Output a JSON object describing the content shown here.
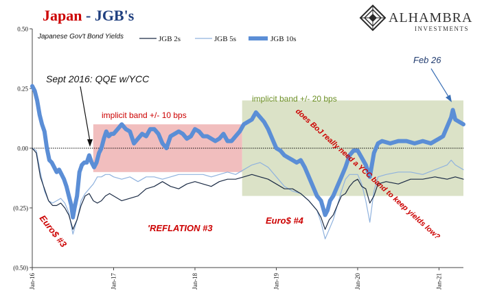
{
  "header": {
    "title_part1": "Japan",
    "title_sep": " - ",
    "title_part2": "JGB's",
    "logo_name": "ALHAMBRA",
    "logo_sub": "INVESTMENTS"
  },
  "colors": {
    "title_red": "#cc0000",
    "title_blue": "#1f3f7f",
    "jgb2": "#1a2a44",
    "jgb5": "#8fb2de",
    "jgb10": "#5b8ed6",
    "jgb10_dark": "#4a5ea8",
    "pink_band": "#efb3b3",
    "green_band": "#cfd8b4",
    "annotation_red": "#cc0000",
    "annotation_green": "#6b8e23",
    "annotation_black": "#111111",
    "annotation_navy": "#1f3a6e"
  },
  "chart_data": {
    "type": "line",
    "title": "Japan - JGB's",
    "subtitle": "Japanese Gov't Bond Yields",
    "xlabel": "",
    "ylabel": "",
    "x_ticks": [
      "Jan-16",
      "Jan-17",
      "Jan-18",
      "Jan-19",
      "Jan-20",
      "Jan-21"
    ],
    "x_range": [
      2016.0,
      2021.3
    ],
    "y_ticks": [
      "0.50",
      "0.25",
      "0.00",
      "(0.25)",
      "(0.50)"
    ],
    "y_tick_values": [
      0.5,
      0.25,
      0.0,
      -0.25,
      -0.5
    ],
    "ylim": [
      -0.5,
      0.5
    ],
    "legend_position": "top-center",
    "legend": [
      "JGB 2s",
      "JGB 5s",
      "JGB 10s"
    ],
    "series": [
      {
        "name": "JGB 2s",
        "points": [
          [
            2016.0,
            0.0
          ],
          [
            2016.05,
            -0.02
          ],
          [
            2016.1,
            -0.12
          ],
          [
            2016.15,
            -0.17
          ],
          [
            2016.2,
            -0.22
          ],
          [
            2016.25,
            -0.24
          ],
          [
            2016.3,
            -0.24
          ],
          [
            2016.35,
            -0.23
          ],
          [
            2016.4,
            -0.25
          ],
          [
            2016.45,
            -0.28
          ],
          [
            2016.5,
            -0.34
          ],
          [
            2016.55,
            -0.3
          ],
          [
            2016.6,
            -0.24
          ],
          [
            2016.65,
            -0.2
          ],
          [
            2016.7,
            -0.19
          ],
          [
            2016.75,
            -0.22
          ],
          [
            2016.8,
            -0.23
          ],
          [
            2016.85,
            -0.22
          ],
          [
            2016.9,
            -0.2
          ],
          [
            2016.95,
            -0.19
          ],
          [
            2017.0,
            -0.2
          ],
          [
            2017.1,
            -0.22
          ],
          [
            2017.2,
            -0.21
          ],
          [
            2017.3,
            -0.2
          ],
          [
            2017.4,
            -0.17
          ],
          [
            2017.5,
            -0.16
          ],
          [
            2017.6,
            -0.14
          ],
          [
            2017.7,
            -0.16
          ],
          [
            2017.8,
            -0.17
          ],
          [
            2017.9,
            -0.15
          ],
          [
            2018.0,
            -0.14
          ],
          [
            2018.1,
            -0.15
          ],
          [
            2018.2,
            -0.16
          ],
          [
            2018.3,
            -0.14
          ],
          [
            2018.4,
            -0.13
          ],
          [
            2018.5,
            -0.13
          ],
          [
            2018.6,
            -0.12
          ],
          [
            2018.7,
            -0.11
          ],
          [
            2018.8,
            -0.12
          ],
          [
            2018.9,
            -0.13
          ],
          [
            2019.0,
            -0.15
          ],
          [
            2019.1,
            -0.17
          ],
          [
            2019.2,
            -0.17
          ],
          [
            2019.3,
            -0.19
          ],
          [
            2019.4,
            -0.22
          ],
          [
            2019.5,
            -0.26
          ],
          [
            2019.55,
            -0.29
          ],
          [
            2019.6,
            -0.34
          ],
          [
            2019.65,
            -0.3
          ],
          [
            2019.7,
            -0.28
          ],
          [
            2019.75,
            -0.24
          ],
          [
            2019.8,
            -0.2
          ],
          [
            2019.85,
            -0.19
          ],
          [
            2019.9,
            -0.16
          ],
          [
            2019.95,
            -0.14
          ],
          [
            2020.0,
            -0.13
          ],
          [
            2020.05,
            -0.16
          ],
          [
            2020.1,
            -0.17
          ],
          [
            2020.15,
            -0.23
          ],
          [
            2020.2,
            -0.2
          ],
          [
            2020.25,
            -0.15
          ],
          [
            2020.35,
            -0.14
          ],
          [
            2020.5,
            -0.15
          ],
          [
            2020.65,
            -0.13
          ],
          [
            2020.8,
            -0.13
          ],
          [
            2020.95,
            -0.12
          ],
          [
            2021.1,
            -0.13
          ],
          [
            2021.2,
            -0.12
          ],
          [
            2021.3,
            -0.13
          ]
        ]
      },
      {
        "name": "JGB 5s",
        "points": [
          [
            2016.0,
            0.0
          ],
          [
            2016.05,
            -0.01
          ],
          [
            2016.1,
            -0.1
          ],
          [
            2016.15,
            -0.18
          ],
          [
            2016.2,
            -0.22
          ],
          [
            2016.25,
            -0.23
          ],
          [
            2016.3,
            -0.22
          ],
          [
            2016.35,
            -0.21
          ],
          [
            2016.4,
            -0.23
          ],
          [
            2016.45,
            -0.27
          ],
          [
            2016.5,
            -0.36
          ],
          [
            2016.55,
            -0.3
          ],
          [
            2016.6,
            -0.22
          ],
          [
            2016.65,
            -0.19
          ],
          [
            2016.7,
            -0.17
          ],
          [
            2016.75,
            -0.15
          ],
          [
            2016.8,
            -0.12
          ],
          [
            2016.85,
            -0.12
          ],
          [
            2016.9,
            -0.11
          ],
          [
            2016.95,
            -0.11
          ],
          [
            2017.0,
            -0.12
          ],
          [
            2017.1,
            -0.13
          ],
          [
            2017.2,
            -0.12
          ],
          [
            2017.3,
            -0.14
          ],
          [
            2017.4,
            -0.12
          ],
          [
            2017.5,
            -0.12
          ],
          [
            2017.6,
            -0.13
          ],
          [
            2017.7,
            -0.12
          ],
          [
            2017.8,
            -0.11
          ],
          [
            2017.9,
            -0.11
          ],
          [
            2018.0,
            -0.11
          ],
          [
            2018.1,
            -0.11
          ],
          [
            2018.2,
            -0.12
          ],
          [
            2018.3,
            -0.11
          ],
          [
            2018.4,
            -0.1
          ],
          [
            2018.5,
            -0.11
          ],
          [
            2018.6,
            -0.09
          ],
          [
            2018.7,
            -0.07
          ],
          [
            2018.8,
            -0.06
          ],
          [
            2018.9,
            -0.08
          ],
          [
            2019.0,
            -0.12
          ],
          [
            2019.1,
            -0.16
          ],
          [
            2019.2,
            -0.18
          ],
          [
            2019.3,
            -0.19
          ],
          [
            2019.4,
            -0.22
          ],
          [
            2019.5,
            -0.26
          ],
          [
            2019.55,
            -0.31
          ],
          [
            2019.6,
            -0.38
          ],
          [
            2019.65,
            -0.34
          ],
          [
            2019.7,
            -0.3
          ],
          [
            2019.75,
            -0.24
          ],
          [
            2019.8,
            -0.18
          ],
          [
            2019.85,
            -0.13
          ],
          [
            2019.9,
            -0.11
          ],
          [
            2019.95,
            -0.11
          ],
          [
            2020.0,
            -0.11
          ],
          [
            2020.05,
            -0.15
          ],
          [
            2020.1,
            -0.22
          ],
          [
            2020.15,
            -0.31
          ],
          [
            2020.2,
            -0.18
          ],
          [
            2020.25,
            -0.12
          ],
          [
            2020.35,
            -0.11
          ],
          [
            2020.5,
            -0.1
          ],
          [
            2020.65,
            -0.1
          ],
          [
            2020.8,
            -0.11
          ],
          [
            2020.95,
            -0.09
          ],
          [
            2021.1,
            -0.07
          ],
          [
            2021.15,
            -0.05
          ],
          [
            2021.2,
            -0.07
          ],
          [
            2021.3,
            -0.09
          ]
        ]
      },
      {
        "name": "JGB 10s",
        "points": [
          [
            2016.0,
            0.26
          ],
          [
            2016.03,
            0.24
          ],
          [
            2016.06,
            0.2
          ],
          [
            2016.09,
            0.14
          ],
          [
            2016.12,
            0.1
          ],
          [
            2016.15,
            0.07
          ],
          [
            2016.18,
            0.0
          ],
          [
            2016.21,
            -0.05
          ],
          [
            2016.24,
            -0.06
          ],
          [
            2016.27,
            -0.08
          ],
          [
            2016.3,
            -0.1
          ],
          [
            2016.33,
            -0.09
          ],
          [
            2016.36,
            -0.11
          ],
          [
            2016.39,
            -0.13
          ],
          [
            2016.42,
            -0.16
          ],
          [
            2016.45,
            -0.2
          ],
          [
            2016.48,
            -0.24
          ],
          [
            2016.5,
            -0.29
          ],
          [
            2016.52,
            -0.25
          ],
          [
            2016.55,
            -0.2
          ],
          [
            2016.58,
            -0.1
          ],
          [
            2016.61,
            -0.07
          ],
          [
            2016.64,
            -0.06
          ],
          [
            2016.67,
            -0.06
          ],
          [
            2016.7,
            -0.03
          ],
          [
            2016.73,
            -0.06
          ],
          [
            2016.76,
            -0.08
          ],
          [
            2016.79,
            -0.06
          ],
          [
            2016.82,
            -0.02
          ],
          [
            2016.85,
            0.0
          ],
          [
            2016.88,
            0.04
          ],
          [
            2016.91,
            0.07
          ],
          [
            2016.94,
            0.05
          ],
          [
            2016.97,
            0.06
          ],
          [
            2017.0,
            0.06
          ],
          [
            2017.05,
            0.08
          ],
          [
            2017.1,
            0.1
          ],
          [
            2017.15,
            0.08
          ],
          [
            2017.2,
            0.07
          ],
          [
            2017.25,
            0.02
          ],
          [
            2017.3,
            0.04
          ],
          [
            2017.35,
            0.06
          ],
          [
            2017.4,
            0.05
          ],
          [
            2017.45,
            0.08
          ],
          [
            2017.5,
            0.08
          ],
          [
            2017.55,
            0.06
          ],
          [
            2017.6,
            0.02
          ],
          [
            2017.65,
            0.0
          ],
          [
            2017.7,
            0.05
          ],
          [
            2017.75,
            0.06
          ],
          [
            2017.8,
            0.07
          ],
          [
            2017.85,
            0.06
          ],
          [
            2017.9,
            0.04
          ],
          [
            2017.95,
            0.05
          ],
          [
            2018.0,
            0.08
          ],
          [
            2018.05,
            0.07
          ],
          [
            2018.1,
            0.05
          ],
          [
            2018.15,
            0.05
          ],
          [
            2018.2,
            0.04
          ],
          [
            2018.25,
            0.03
          ],
          [
            2018.3,
            0.04
          ],
          [
            2018.35,
            0.06
          ],
          [
            2018.4,
            0.03
          ],
          [
            2018.45,
            0.03
          ],
          [
            2018.5,
            0.05
          ],
          [
            2018.55,
            0.07
          ],
          [
            2018.6,
            0.1
          ],
          [
            2018.65,
            0.11
          ],
          [
            2018.7,
            0.12
          ],
          [
            2018.75,
            0.15
          ],
          [
            2018.8,
            0.13
          ],
          [
            2018.85,
            0.11
          ],
          [
            2018.9,
            0.08
          ],
          [
            2018.95,
            0.04
          ],
          [
            2019.0,
            0.0
          ],
          [
            2019.05,
            -0.01
          ],
          [
            2019.1,
            -0.03
          ],
          [
            2019.15,
            -0.04
          ],
          [
            2019.2,
            -0.05
          ],
          [
            2019.25,
            -0.06
          ],
          [
            2019.3,
            -0.05
          ],
          [
            2019.35,
            -0.08
          ],
          [
            2019.4,
            -0.12
          ],
          [
            2019.45,
            -0.16
          ],
          [
            2019.5,
            -0.2
          ],
          [
            2019.55,
            -0.22
          ],
          [
            2019.6,
            -0.28
          ],
          [
            2019.63,
            -0.26
          ],
          [
            2019.66,
            -0.22
          ],
          [
            2019.7,
            -0.2
          ],
          [
            2019.75,
            -0.16
          ],
          [
            2019.8,
            -0.12
          ],
          [
            2019.85,
            -0.08
          ],
          [
            2019.9,
            -0.03
          ],
          [
            2019.95,
            -0.01
          ],
          [
            2020.0,
            -0.01
          ],
          [
            2020.05,
            -0.04
          ],
          [
            2020.1,
            -0.07
          ],
          [
            2020.15,
            -0.12
          ],
          [
            2020.2,
            -0.02
          ],
          [
            2020.25,
            0.02
          ],
          [
            2020.3,
            0.03
          ],
          [
            2020.4,
            0.02
          ],
          [
            2020.5,
            0.03
          ],
          [
            2020.6,
            0.03
          ],
          [
            2020.7,
            0.02
          ],
          [
            2020.8,
            0.03
          ],
          [
            2020.9,
            0.02
          ],
          [
            2021.0,
            0.04
          ],
          [
            2021.05,
            0.05
          ],
          [
            2021.1,
            0.09
          ],
          [
            2021.15,
            0.13
          ],
          [
            2021.17,
            0.16
          ],
          [
            2021.2,
            0.12
          ],
          [
            2021.25,
            0.11
          ],
          [
            2021.3,
            0.1
          ]
        ]
      }
    ],
    "bands": [
      {
        "label": "implicit band +/- 10 bps",
        "x_start": 2016.75,
        "x_end": 2018.58,
        "y_min": -0.1,
        "y_max": 0.1
      },
      {
        "label": "implicit band +/- 20 bps",
        "x_start": 2018.58,
        "x_end": 2021.3,
        "y_min": -0.2,
        "y_max": 0.2
      }
    ],
    "annotations": [
      {
        "text": "Sept 2016:  QQE w/YCC",
        "x": 2016.72,
        "y": 0.0,
        "style": "black-italic"
      },
      {
        "text": "implicit band +/- 10 bps",
        "style": "red"
      },
      {
        "text": "implicit band +/- 20 bps",
        "style": "green"
      },
      {
        "text": "does BoJ really need a YCC band to keep yields low?",
        "style": "red-italic-rotated"
      },
      {
        "text": "Feb 26",
        "x": 2021.17,
        "y": 0.16,
        "style": "navy-italic"
      },
      {
        "text": "Euro$ #3",
        "style": "red-italic"
      },
      {
        "text": "'REFLATION #3",
        "style": "red-italic"
      },
      {
        "text": "Euro$ #4",
        "style": "red-italic"
      }
    ]
  }
}
